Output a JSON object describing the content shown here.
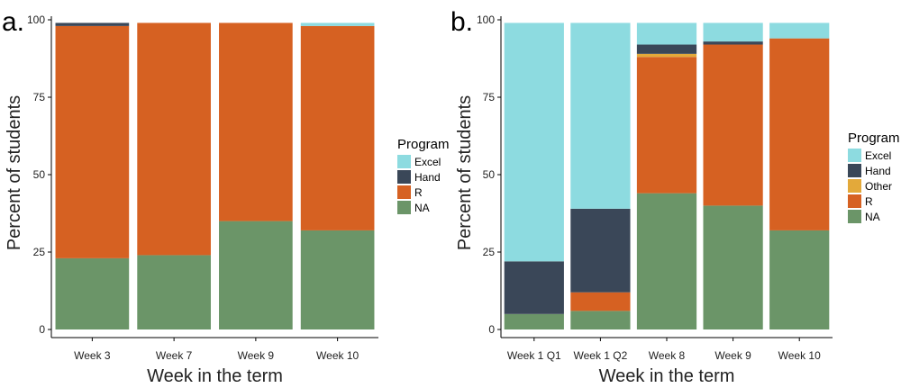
{
  "chart_data": [
    {
      "type": "bar",
      "stacked": true,
      "panel_label": "a.",
      "xlabel": "Week in the term",
      "ylabel": "Percent of students",
      "ylim": [
        0,
        100
      ],
      "yticks": [
        0,
        25,
        50,
        75,
        100
      ],
      "categories": [
        "Week 3",
        "Week 7",
        "Week 9",
        "Week 10"
      ],
      "series": [
        {
          "name": "NA",
          "color": "#6b9568",
          "values": [
            23,
            24,
            35,
            32
          ]
        },
        {
          "name": "R",
          "color": "#d66122",
          "values": [
            75,
            75,
            64,
            66
          ]
        },
        {
          "name": "Hand",
          "color": "#3a4758",
          "values": [
            1,
            0,
            0,
            0
          ]
        },
        {
          "name": "Excel",
          "color": "#8ddbe0",
          "values": [
            0,
            0,
            0,
            1
          ]
        }
      ],
      "legend": {
        "title": "Program",
        "position": "right",
        "items": [
          "Excel",
          "Hand",
          "R",
          "NA"
        ]
      },
      "grid": false
    },
    {
      "type": "bar",
      "stacked": true,
      "panel_label": "b.",
      "xlabel": "Week in the term",
      "ylabel": "Percent of students",
      "ylim": [
        0,
        100
      ],
      "yticks": [
        0,
        25,
        50,
        75,
        100
      ],
      "categories": [
        "Week 1 Q1",
        "Week 1 Q2",
        "Week 8",
        "Week 9",
        "Week 10"
      ],
      "series": [
        {
          "name": "NA",
          "color": "#6b9568",
          "values": [
            5,
            6,
            44,
            40,
            32
          ]
        },
        {
          "name": "R",
          "color": "#d66122",
          "values": [
            0,
            6,
            44,
            52,
            62
          ]
        },
        {
          "name": "Other",
          "color": "#e3a93a",
          "values": [
            0,
            0,
            1,
            0,
            0
          ]
        },
        {
          "name": "Hand",
          "color": "#3a4758",
          "values": [
            17,
            27,
            3,
            1,
            0
          ]
        },
        {
          "name": "Excel",
          "color": "#8ddbe0",
          "values": [
            77,
            60,
            7,
            6,
            5
          ]
        }
      ],
      "legend": {
        "title": "Program",
        "position": "right",
        "items": [
          "Excel",
          "Hand",
          "Other",
          "R",
          "NA"
        ]
      },
      "grid": false
    }
  ]
}
